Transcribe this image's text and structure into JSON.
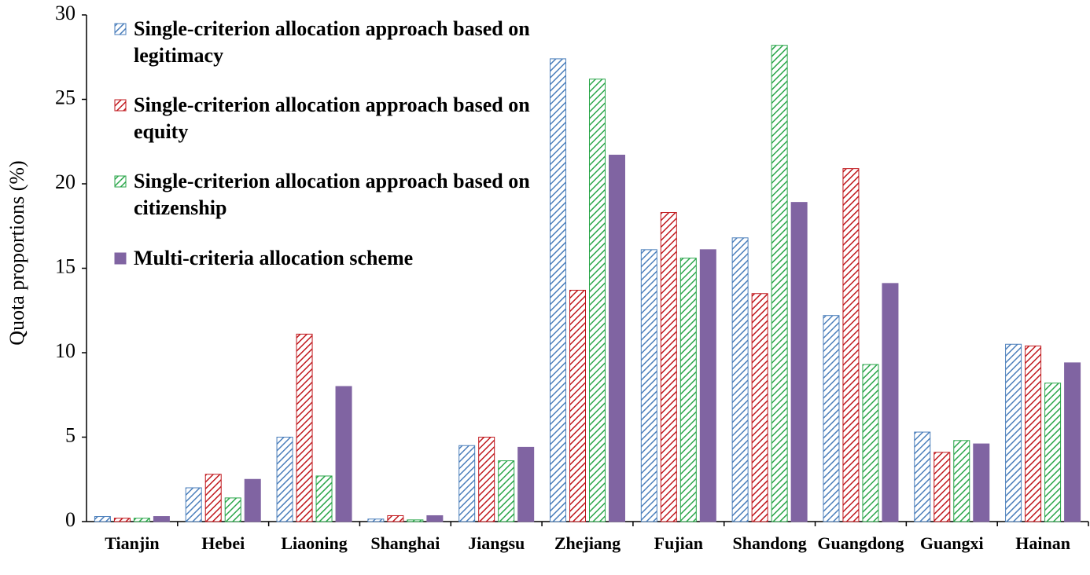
{
  "chart_data": {
    "type": "bar",
    "y_label": "Quota proportions (%)",
    "categories": [
      "Tianjin",
      "Hebei",
      "Liaoning",
      "Shanghai",
      "Jiangsu",
      "Zhejiang",
      "Fujian",
      "Shandong",
      "Guangdong",
      "Guangxi",
      "Hainan"
    ],
    "series": [
      {
        "name": "Single-criterion allocation approach based on legitimacy",
        "color": "#4a7ebb",
        "pattern": "hatch",
        "values": [
          0.3,
          2.0,
          5.0,
          0.15,
          4.5,
          27.4,
          16.1,
          16.8,
          12.2,
          5.3,
          10.5
        ]
      },
      {
        "name": "Single-criterion allocation approach based on equity",
        "color": "#c0171c",
        "pattern": "hatch",
        "values": [
          0.2,
          2.8,
          11.1,
          0.35,
          5.0,
          13.7,
          18.3,
          13.5,
          20.9,
          4.1,
          10.4
        ]
      },
      {
        "name": "Single-criterion allocation approach based on citizenship",
        "color": "#2aa64a",
        "pattern": "hatch",
        "values": [
          0.2,
          1.4,
          2.7,
          0.1,
          3.6,
          26.2,
          15.6,
          28.2,
          9.3,
          4.8,
          8.2
        ]
      },
      {
        "name": "Multi-criteria allocation scheme",
        "color": "#8064a2",
        "pattern": "solid",
        "values": [
          0.3,
          2.5,
          8.0,
          0.35,
          4.4,
          21.7,
          16.1,
          18.9,
          14.1,
          4.6,
          9.4
        ]
      }
    ],
    "ylim": [
      0,
      30
    ],
    "yticks": [
      0,
      5,
      10,
      15,
      20,
      25,
      30
    ],
    "grid": false,
    "legend": "upper left"
  }
}
